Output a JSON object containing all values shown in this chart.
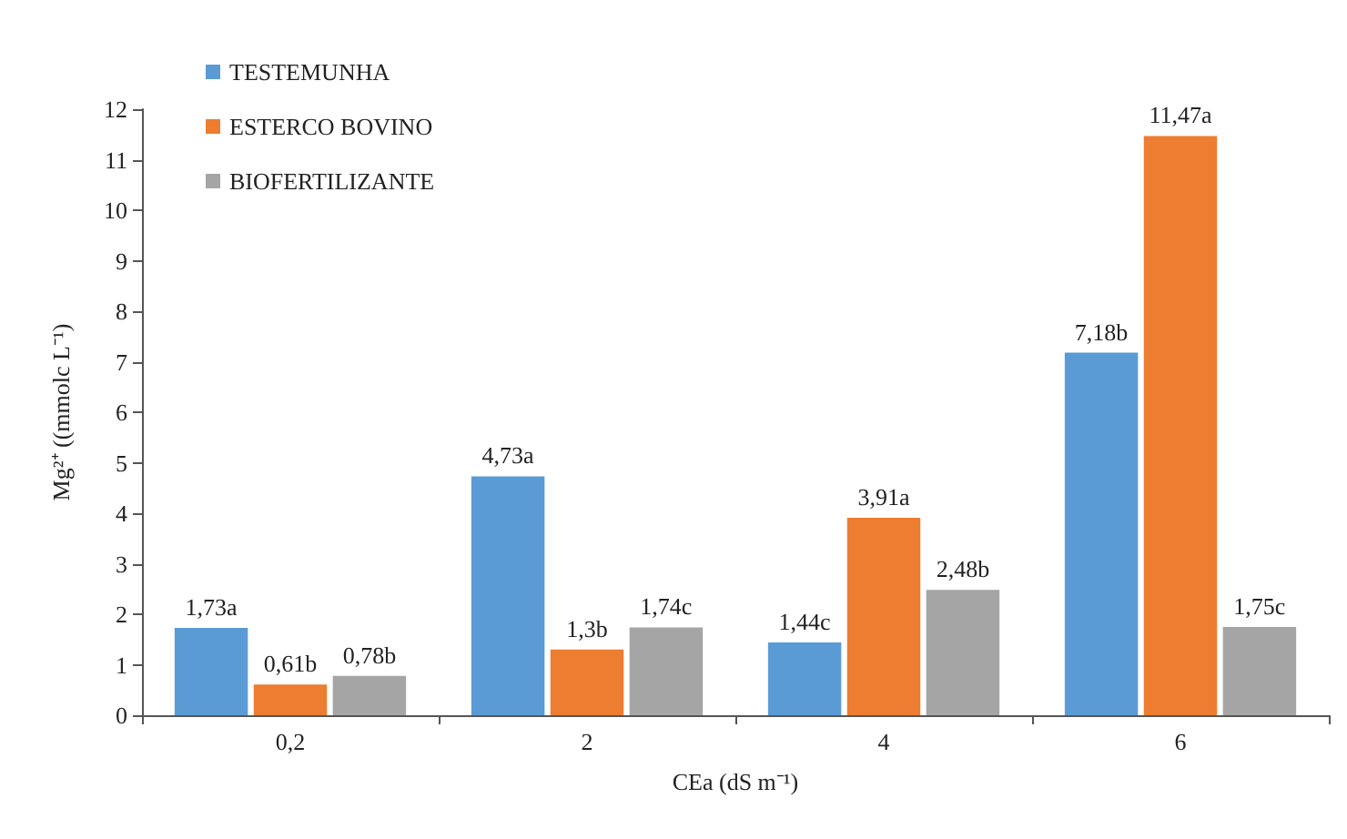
{
  "chart_data": {
    "type": "bar",
    "xlabel": "CEa (dS m⁻¹)",
    "ylabel": "Mg²⁺ ((mmolc L⁻¹)",
    "categories": [
      "0,2",
      "2",
      "4",
      "6"
    ],
    "series": [
      {
        "name": "TESTEMUNHA",
        "color": "#5b9bd5",
        "values": [
          1.73,
          4.73,
          1.44,
          7.18
        ],
        "value_labels": [
          "1,73a",
          "4,73a",
          "1,44c",
          "7,18b"
        ]
      },
      {
        "name": "ESTERCO BOVINO",
        "color": "#ed7d31",
        "values": [
          0.61,
          1.3,
          3.91,
          11.47
        ],
        "value_labels": [
          "0,61b",
          "1,3b",
          "3,91a",
          "11,47a"
        ]
      },
      {
        "name": "BIOFERTILIZANTE",
        "color": "#a5a5a5",
        "values": [
          0.78,
          1.74,
          2.48,
          1.75
        ],
        "value_labels": [
          "0,78b",
          "1,74c",
          "2,48b",
          "1,75c"
        ]
      }
    ],
    "ylim": [
      0,
      12
    ],
    "yticks": [
      0,
      1,
      2,
      3,
      4,
      5,
      6,
      7,
      8,
      9,
      10,
      11,
      12
    ],
    "grid": false,
    "legend": "top left"
  }
}
